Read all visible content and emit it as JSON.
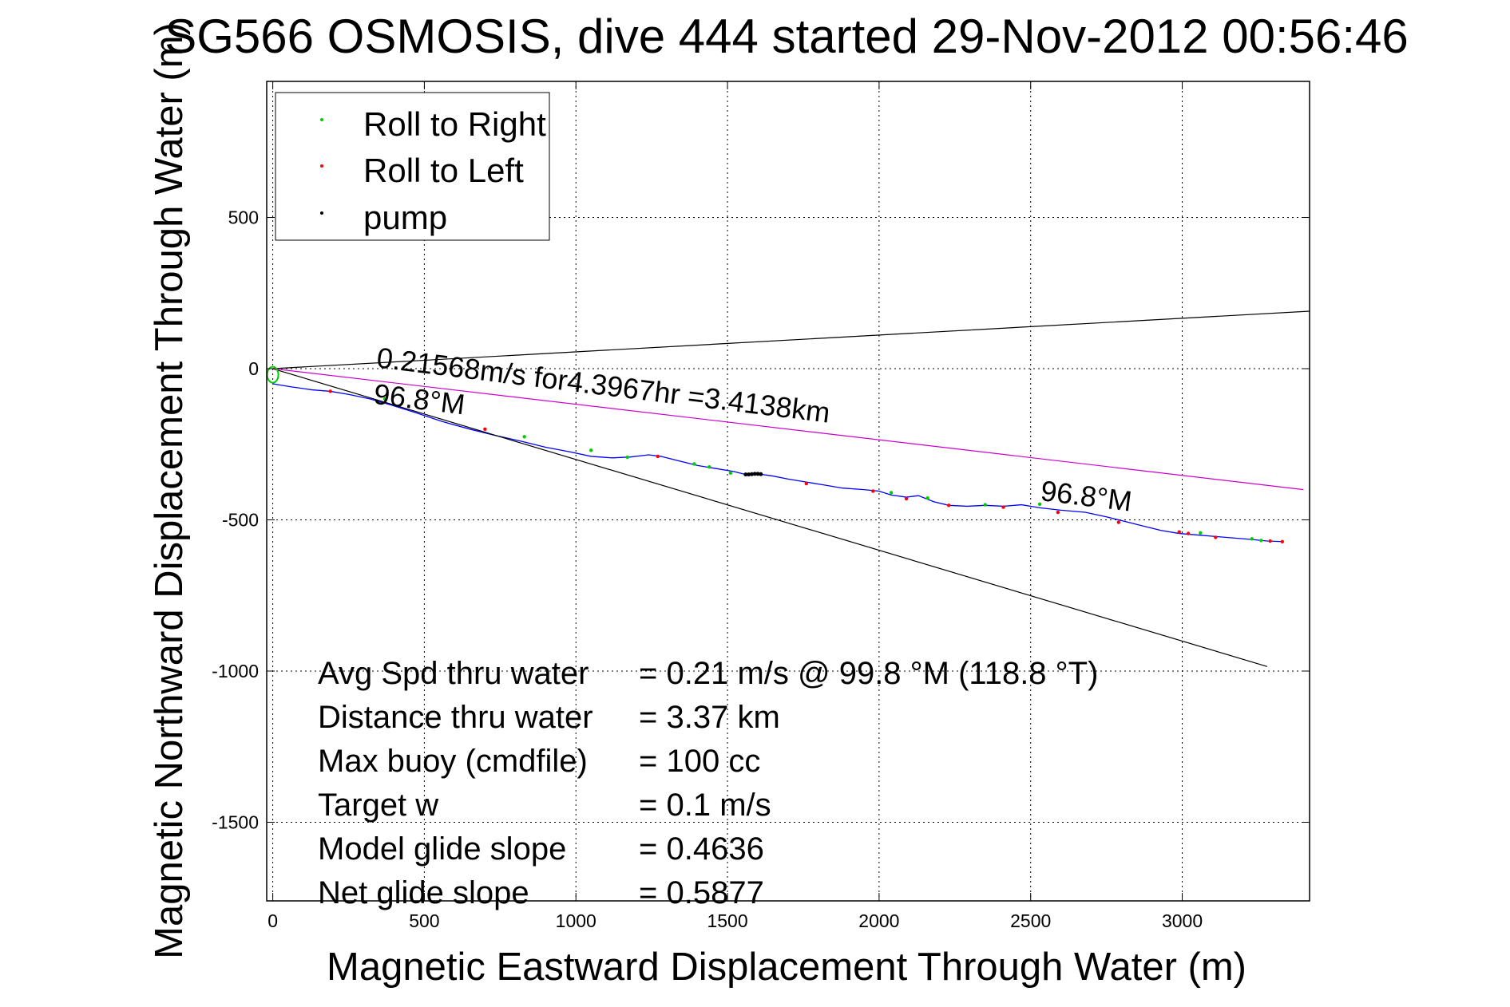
{
  "chart_data": {
    "type": "line",
    "title": "SG566 OSMOSIS, dive 444 started 29-Nov-2012 00:56:46",
    "xlabel": "Magnetic Eastward Displacement Through Water (m)",
    "ylabel": "Magnetic Northward Displacement Through Water (m)",
    "xlim": [
      -20,
      3420
    ],
    "ylim": [
      -1760,
      950
    ],
    "xticks": [
      0,
      500,
      1000,
      1500,
      2000,
      2500,
      3000
    ],
    "xtick_labels": [
      "0",
      "500",
      "1000",
      "1500",
      "2000",
      "2500",
      "3000"
    ],
    "yticks": [
      500,
      0,
      -500,
      -1000,
      -1500
    ],
    "ytick_labels": [
      "500",
      "0",
      "-500",
      "-1000",
      "-1500"
    ],
    "grid": true,
    "legend_position": "top-left",
    "legend": [
      {
        "label": "Roll to Right",
        "color": "#00cc00"
      },
      {
        "label": "Roll to Left",
        "color": "#ff0000"
      },
      {
        "label": "pump",
        "color": "#000000"
      }
    ],
    "series": [
      {
        "name": "track",
        "color": "#0000ff",
        "x": [
          0,
          60,
          130,
          190,
          250,
          320,
          390,
          470,
          560,
          650,
          730,
          820,
          900,
          980,
          1050,
          1120,
          1180,
          1240,
          1280,
          1340,
          1400,
          1460,
          1520,
          1560,
          1600,
          1650,
          1700,
          1760,
          1820,
          1880,
          1950,
          2000,
          2040,
          2090,
          2130,
          2180,
          2230,
          2290,
          2350,
          2410,
          2470,
          2530,
          2600,
          2680,
          2750,
          2810,
          2870,
          2930,
          2990,
          3050,
          3110,
          3170,
          3230,
          3280,
          3330
        ],
        "y": [
          -50,
          -60,
          -70,
          -75,
          -85,
          -100,
          -120,
          -145,
          -175,
          -200,
          -220,
          -240,
          -260,
          -275,
          -290,
          -295,
          -292,
          -285,
          -290,
          -305,
          -320,
          -330,
          -340,
          -350,
          -348,
          -355,
          -365,
          -375,
          -385,
          -395,
          -400,
          -405,
          -418,
          -425,
          -420,
          -440,
          -452,
          -455,
          -452,
          -455,
          -450,
          -460,
          -468,
          -475,
          -490,
          -505,
          -520,
          -535,
          -545,
          -550,
          -555,
          -560,
          -565,
          -570,
          -572
        ]
      },
      {
        "name": "roll_right",
        "color": "#00cc00",
        "x": [
          370,
          830,
          1050,
          1170,
          1390,
          1440,
          1510,
          2040,
          2160,
          2350,
          2530,
          3060,
          3230,
          3260
        ],
        "y": [
          -100,
          -225,
          -270,
          -293,
          -315,
          -325,
          -345,
          -410,
          -428,
          -450,
          -448,
          -543,
          -563,
          -568
        ]
      },
      {
        "name": "roll_left",
        "color": "#ff0000",
        "x": [
          190,
          700,
          1270,
          1760,
          1980,
          2090,
          2230,
          2410,
          2590,
          2790,
          2990,
          3020,
          3110,
          3290,
          3330
        ],
        "y": [
          -75,
          -200,
          -290,
          -380,
          -405,
          -430,
          -452,
          -458,
          -475,
          -508,
          -540,
          -545,
          -558,
          -570,
          -572
        ]
      },
      {
        "name": "pump",
        "color": "#000000",
        "x": [
          1560,
          1570,
          1580,
          1590,
          1600,
          1610
        ],
        "y": [
          -350,
          -350,
          -349,
          -348,
          -348,
          -349
        ]
      },
      {
        "name": "line_upper",
        "color": "#000000",
        "x": [
          0,
          3420
        ],
        "y": [
          0,
          190
        ]
      },
      {
        "name": "line_lower",
        "color": "#000000",
        "x": [
          0,
          3280
        ],
        "y": [
          0,
          -985
        ]
      },
      {
        "name": "line_avg",
        "color": "#cc00cc",
        "x": [
          0,
          3400
        ],
        "y": [
          0,
          -400
        ]
      }
    ],
    "start_marker": {
      "x": 0,
      "y": -20,
      "color": "#00cc00"
    },
    "annotations": [
      {
        "text": "0.21568m/s for4.3967hr =3.4138km",
        "x": 340,
        "y": 5,
        "angle": 7
      },
      {
        "text": "96.8°M",
        "x": 330,
        "y": -115,
        "angle": 7
      },
      {
        "text": "96.8°M",
        "x": 2530,
        "y": -435,
        "angle": 7
      }
    ],
    "stats": [
      {
        "label": "Avg Spd thru water",
        "value": "=  0.21 m/s @  99.8 °M (118.8 °T)"
      },
      {
        "label": "Distance thru water",
        "value": "=  3.37 km"
      },
      {
        "label": "Max buoy (cmdfile)",
        "value": "= 100 cc"
      },
      {
        "label": "Target w",
        "value": "= 0.1 m/s"
      },
      {
        "label": "Model glide slope",
        "value": "= 0.4636"
      },
      {
        "label": "Net glide slope",
        "value": "= 0.5877"
      }
    ]
  }
}
